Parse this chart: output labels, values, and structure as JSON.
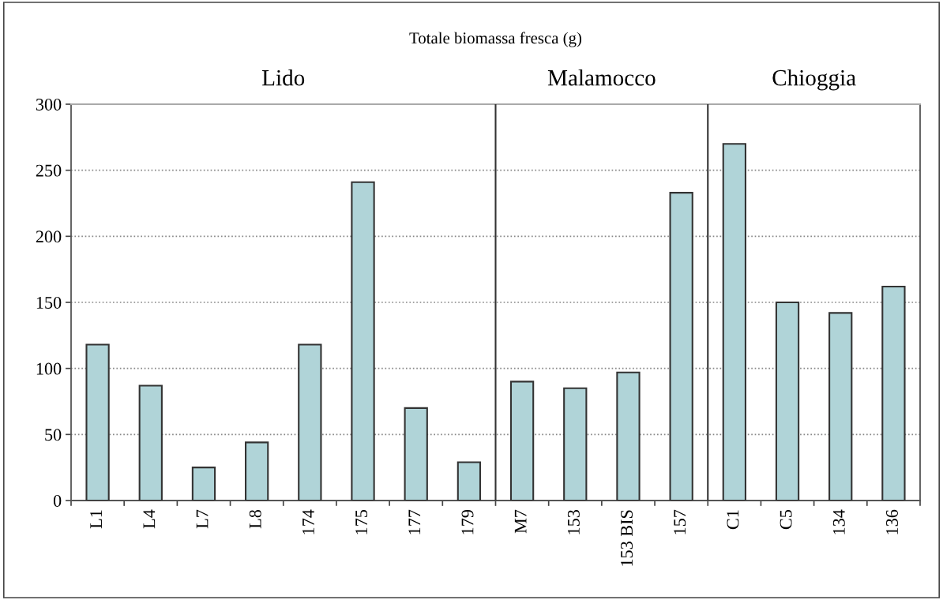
{
  "chart_data": {
    "type": "bar",
    "title": "Totale biomassa fresca (g)",
    "categories": [
      "L1",
      "L4",
      "L7",
      "L8",
      "174",
      "175",
      "177",
      "179",
      "M7",
      "153",
      "153 BIS",
      "157",
      "C1",
      "C5",
      "134",
      "136"
    ],
    "values": [
      118,
      87,
      25,
      44,
      118,
      241,
      70,
      29,
      90,
      85,
      97,
      233,
      270,
      150,
      142,
      162
    ],
    "color": "#b0d4d8",
    "ylim": [
      0,
      300
    ],
    "yticks": [
      0,
      50,
      100,
      150,
      200,
      250,
      300
    ],
    "grid": "y",
    "annotations": [
      "Lido",
      "Malamocco",
      "Chioggia"
    ]
  }
}
